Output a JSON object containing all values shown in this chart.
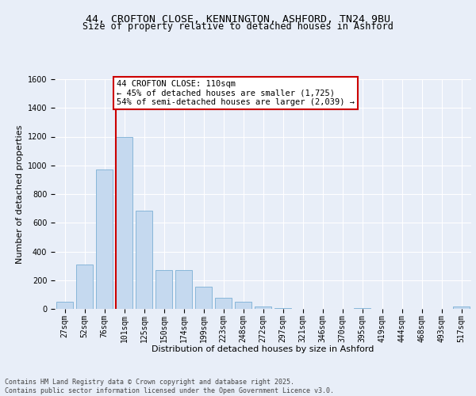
{
  "title_line1": "44, CROFTON CLOSE, KENNINGTON, ASHFORD, TN24 9BU",
  "title_line2": "Size of property relative to detached houses in Ashford",
  "xlabel": "Distribution of detached houses by size in Ashford",
  "ylabel": "Number of detached properties",
  "categories": [
    "27sqm",
    "52sqm",
    "76sqm",
    "101sqm",
    "125sqm",
    "150sqm",
    "174sqm",
    "199sqm",
    "223sqm",
    "248sqm",
    "272sqm",
    "297sqm",
    "321sqm",
    "346sqm",
    "370sqm",
    "395sqm",
    "419sqm",
    "444sqm",
    "468sqm",
    "493sqm",
    "517sqm"
  ],
  "values": [
    50,
    310,
    970,
    1200,
    685,
    270,
    270,
    155,
    80,
    50,
    18,
    5,
    2,
    0,
    0,
    3,
    0,
    0,
    0,
    0,
    18
  ],
  "bar_color": "#c5d9ef",
  "bar_edge_color": "#7bafd4",
  "vline_x_index": 3,
  "vline_color": "#cc0000",
  "annotation_text": "44 CROFTON CLOSE: 110sqm\n← 45% of detached houses are smaller (1,725)\n54% of semi-detached houses are larger (2,039) →",
  "annotation_box_facecolor": "#ffffff",
  "annotation_box_edgecolor": "#cc0000",
  "ylim": [
    0,
    1600
  ],
  "yticks": [
    0,
    200,
    400,
    600,
    800,
    1000,
    1200,
    1400,
    1600
  ],
  "background_color": "#e8eef8",
  "plot_background": "#e8eef8",
  "grid_color": "#ffffff",
  "footer_text": "Contains HM Land Registry data © Crown copyright and database right 2025.\nContains public sector information licensed under the Open Government Licence v3.0.",
  "title_fontsize": 9.5,
  "subtitle_fontsize": 8.5,
  "axis_label_fontsize": 8,
  "tick_fontsize": 7,
  "annotation_fontsize": 7.5,
  "footer_fontsize": 6
}
